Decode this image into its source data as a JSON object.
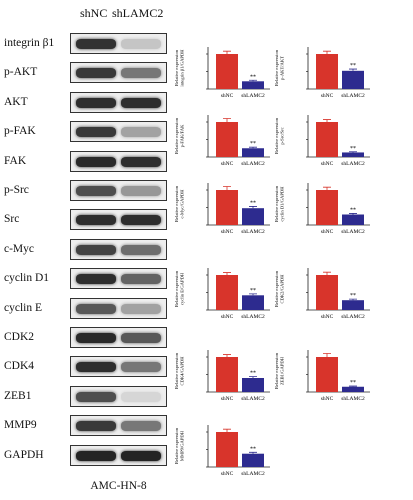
{
  "lanes": [
    "shNC",
    "shLAMC2"
  ],
  "cell_line": "AMC-HN-8",
  "blots": [
    {
      "label": "integrin β1",
      "band_intensity": [
        0.88,
        0.18
      ]
    },
    {
      "label": "p-AKT",
      "band_intensity": [
        0.85,
        0.55
      ]
    },
    {
      "label": "AKT",
      "band_intensity": [
        0.9,
        0.9
      ]
    },
    {
      "label": "p-FAK",
      "band_intensity": [
        0.85,
        0.35
      ]
    },
    {
      "label": "FAK",
      "band_intensity": [
        0.92,
        0.9
      ]
    },
    {
      "label": "p-Src",
      "band_intensity": [
        0.75,
        0.4
      ]
    },
    {
      "label": "Src",
      "band_intensity": [
        0.9,
        0.9
      ]
    },
    {
      "label": "c-Myc",
      "band_intensity": [
        0.8,
        0.6
      ]
    },
    {
      "label": "cyclin D1",
      "band_intensity": [
        0.9,
        0.65
      ]
    },
    {
      "label": "cyclin E",
      "band_intensity": [
        0.7,
        0.35
      ]
    },
    {
      "label": "CDK2",
      "band_intensity": [
        0.92,
        0.7
      ]
    },
    {
      "label": "CDK4",
      "band_intensity": [
        0.9,
        0.55
      ]
    },
    {
      "label": "ZEB1",
      "band_intensity": [
        0.75,
        0.1
      ]
    },
    {
      "label": "MMP9",
      "band_intensity": [
        0.85,
        0.55
      ]
    },
    {
      "label": "GAPDH",
      "band_intensity": [
        0.95,
        0.95
      ]
    }
  ],
  "colors": {
    "shNC": "#d8342b",
    "shLAMC2": "#2d2b8f",
    "axis": "#222222"
  },
  "chart_data": [
    {
      "type": "bar",
      "categories": [
        "shNC",
        "shLAMC2"
      ],
      "values": [
        1.0,
        0.22
      ],
      "errors": [
        0.08,
        0.03
      ],
      "ylabel": "Relative expression integrin β1/GAPDH",
      "annotation": "**"
    },
    {
      "type": "bar",
      "categories": [
        "shNC",
        "shLAMC2"
      ],
      "values": [
        1.0,
        0.52
      ],
      "errors": [
        0.08,
        0.05
      ],
      "ylabel": "Relative expression p-AKT/AKT",
      "annotation": "**"
    },
    {
      "type": "bar",
      "categories": [
        "shNC",
        "shLAMC2"
      ],
      "values": [
        1.0,
        0.25
      ],
      "errors": [
        0.1,
        0.03
      ],
      "ylabel": "Relative expression p-FAK/FAK",
      "annotation": "**"
    },
    {
      "type": "bar",
      "categories": [
        "shNC",
        "shLAMC2"
      ],
      "values": [
        1.0,
        0.13
      ],
      "errors": [
        0.07,
        0.02
      ],
      "ylabel": "Relative expression p-Src/Src",
      "annotation": "**"
    },
    {
      "type": "bar",
      "categories": [
        "shNC",
        "shLAMC2"
      ],
      "values": [
        1.0,
        0.48
      ],
      "errors": [
        0.1,
        0.05
      ],
      "ylabel": "Relative expression c-Myc/GAPDH",
      "annotation": "**"
    },
    {
      "type": "bar",
      "categories": [
        "shNC",
        "shLAMC2"
      ],
      "values": [
        1.0,
        0.3
      ],
      "errors": [
        0.08,
        0.03
      ],
      "ylabel": "Relative expression cyclin D1/GAPDH",
      "annotation": "**"
    },
    {
      "type": "bar",
      "categories": [
        "shNC",
        "shLAMC2"
      ],
      "values": [
        1.0,
        0.42
      ],
      "errors": [
        0.07,
        0.04
      ],
      "ylabel": "Relative expression cyclin E/GAPDH",
      "annotation": "**"
    },
    {
      "type": "bar",
      "categories": [
        "shNC",
        "shLAMC2"
      ],
      "values": [
        1.0,
        0.28
      ],
      "errors": [
        0.08,
        0.03
      ],
      "ylabel": "Relative expression CDK2/GAPDH",
      "annotation": "**"
    },
    {
      "type": "bar",
      "categories": [
        "shNC",
        "shLAMC2"
      ],
      "values": [
        1.0,
        0.4
      ],
      "errors": [
        0.07,
        0.04
      ],
      "ylabel": "Relative expression CDK4/GAPDH",
      "annotation": "**"
    },
    {
      "type": "bar",
      "categories": [
        "shNC",
        "shLAMC2"
      ],
      "values": [
        1.0,
        0.15
      ],
      "errors": [
        0.1,
        0.02
      ],
      "ylabel": "Relative expression ZEB1/GAPDH",
      "annotation": "**"
    },
    {
      "type": "bar",
      "categories": [
        "shNC",
        "shLAMC2"
      ],
      "values": [
        1.0,
        0.38
      ],
      "errors": [
        0.08,
        0.04
      ],
      "ylabel": "Relative expression MMP9/GAPDH",
      "annotation": "**"
    }
  ]
}
